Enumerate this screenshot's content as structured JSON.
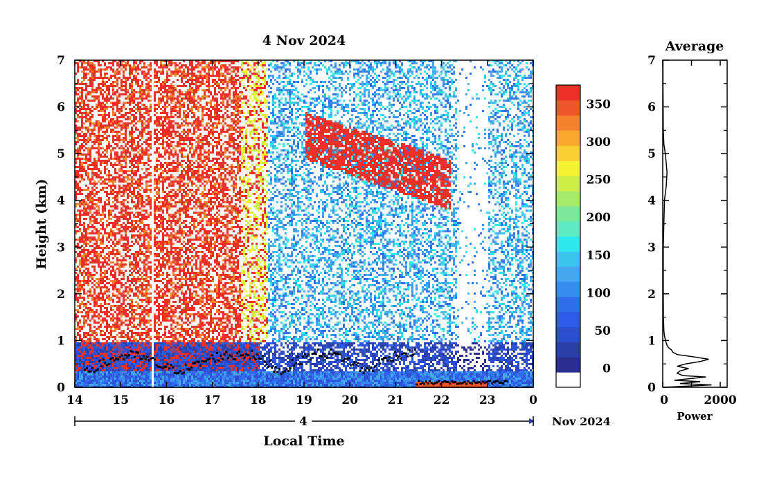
{
  "chart_data": [
    {
      "type": "heatmap",
      "title": "4 Nov 2024",
      "xlabel": "Local Time",
      "ylabel": "Height (km)",
      "xlim": [
        14,
        24
      ],
      "ylim": [
        0,
        7
      ],
      "x_ticks": [
        "14",
        "15",
        "16",
        "17",
        "18",
        "19",
        "20",
        "21",
        "22",
        "23",
        "0"
      ],
      "y_ticks": [
        "0",
        "1",
        "2",
        "3",
        "4",
        "5",
        "6",
        "7"
      ],
      "date_axis": {
        "day": "4",
        "month": "Nov 2024"
      },
      "grid": false,
      "colorbar": {
        "ticks": [
          "0",
          "50",
          "100",
          "150",
          "200",
          "250",
          "300",
          "350"
        ],
        "tick_values": [
          0,
          50,
          100,
          150,
          200,
          250,
          300,
          350
        ],
        "range": [
          -25,
          375
        ],
        "colors": [
          "#ffffff",
          "#2b2f8f",
          "#2a3fa8",
          "#2b4fd0",
          "#2f5be8",
          "#2f6fee",
          "#3a8df0",
          "#45a8ef",
          "#3ac5ef",
          "#2ee8ec",
          "#5eeac0",
          "#7ee89a",
          "#a6ea6b",
          "#cfee45",
          "#f2f230",
          "#f7cf2e",
          "#f8a82c",
          "#f5822d",
          "#f0562c",
          "#ec3028"
        ]
      },
      "features": [
        {
          "label": "boundary layer top",
          "start_h": 14.2,
          "end_h": 17.5,
          "height_km": [
            0.7,
            0.55,
            0.5,
            0.6
          ]
        },
        {
          "label": "cloud layer",
          "start_h": 19.0,
          "end_h": 22.2,
          "base_km": 3.8,
          "top_km": 5.9
        },
        {
          "label": "gap",
          "start_h": 15.65,
          "end_h": 15.72
        }
      ]
    },
    {
      "type": "line",
      "title": "Average",
      "xlabel": "Power",
      "xlim": [
        0,
        2000
      ],
      "ylim": [
        0,
        7
      ],
      "x_ticks": [
        "0",
        "2000"
      ],
      "y_ticks": [
        "0",
        "1",
        "2",
        "3",
        "4",
        "5",
        "6",
        "7"
      ],
      "series": [
        {
          "y": [
            0.0,
            0.05,
            0.08,
            0.12,
            0.15,
            0.18,
            0.22,
            0.25,
            0.3,
            0.35,
            0.4,
            0.45,
            0.5,
            0.55,
            0.6,
            0.65,
            0.7,
            0.75,
            0.8,
            0.85,
            0.9,
            0.95,
            1.0,
            1.1,
            1.2,
            1.5,
            2.0,
            3.0,
            4.0,
            4.3,
            4.6,
            4.8,
            5.0,
            5.2,
            5.5,
            6.0,
            6.5,
            7.0
          ],
          "x": [
            50,
            1700,
            600,
            1300,
            400,
            900,
            1500,
            700,
            500,
            600,
            900,
            500,
            800,
            1300,
            1600,
            1100,
            500,
            350,
            300,
            200,
            150,
            120,
            100,
            60,
            40,
            25,
            20,
            20,
            60,
            120,
            150,
            120,
            90,
            40,
            20,
            15,
            10,
            10
          ]
        }
      ]
    }
  ]
}
